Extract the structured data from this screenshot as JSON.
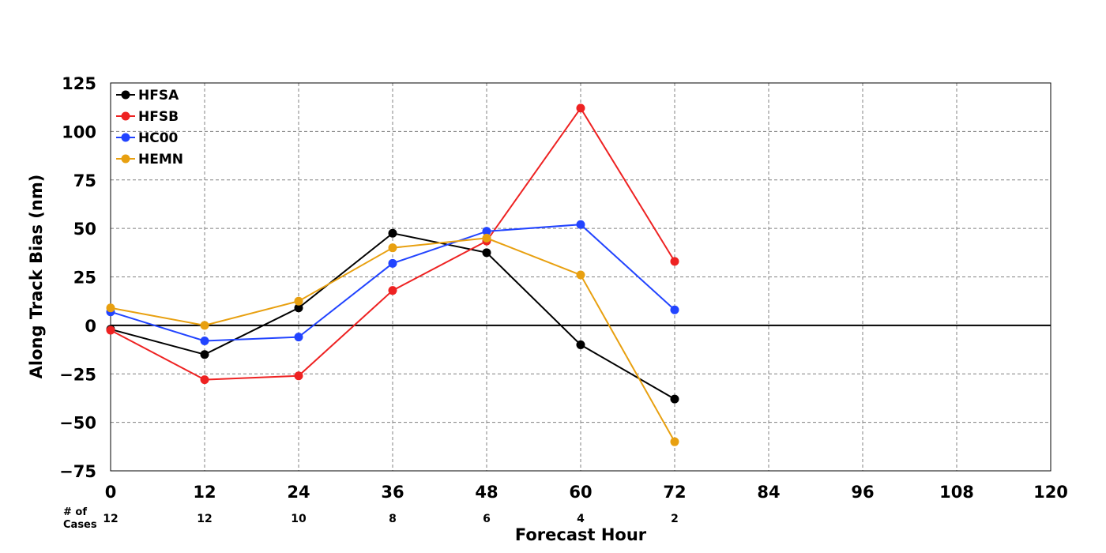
{
  "chart_data": {
    "type": "line",
    "title": "",
    "xlabel": "Forecast Hour",
    "ylabel": "Along Track Bias (nm)",
    "xlim": [
      0,
      120
    ],
    "ylim": [
      -75,
      125
    ],
    "xticks": [
      0,
      12,
      24,
      36,
      48,
      60,
      72,
      84,
      96,
      108,
      120
    ],
    "yticks": [
      -75,
      -50,
      -25,
      0,
      25,
      50,
      75,
      100,
      125
    ],
    "ytick_labels": [
      "−75",
      "−50",
      "−25",
      "0",
      "25",
      "50",
      "75",
      "100",
      "125"
    ],
    "grid": true,
    "legend_position": "top-left",
    "x": [
      0,
      12,
      24,
      36,
      48,
      60,
      72
    ],
    "series": [
      {
        "name": "HFSA",
        "color": "#000000",
        "values": [
          -2,
          -15,
          9,
          47.5,
          37.5,
          -10,
          -38
        ]
      },
      {
        "name": "HFSB",
        "color": "#ee2222",
        "values": [
          -2.5,
          -28,
          -26,
          18,
          43.5,
          112,
          33
        ]
      },
      {
        "name": "HC00",
        "color": "#2244ff",
        "values": [
          7,
          -8,
          -6,
          32,
          48.5,
          52,
          8
        ]
      },
      {
        "name": "HEMN",
        "color": "#e8a010",
        "values": [
          9,
          0,
          12.5,
          40,
          45,
          26,
          -60
        ]
      }
    ],
    "cases": {
      "header": "# of\nCases",
      "x": [
        0,
        12,
        24,
        36,
        48,
        60,
        72
      ],
      "values": [
        "12",
        "12",
        "10",
        "8",
        "6",
        "4",
        "2"
      ]
    }
  }
}
